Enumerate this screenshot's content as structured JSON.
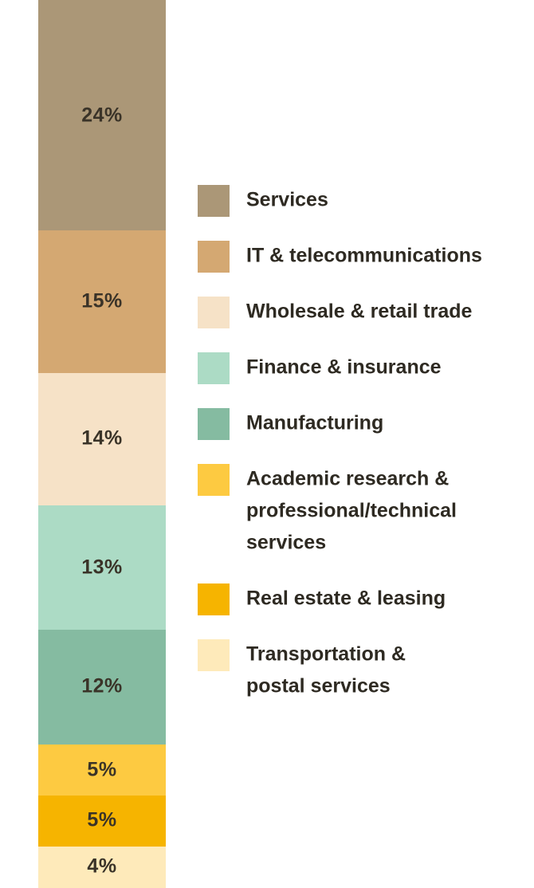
{
  "chart_data": {
    "type": "bar",
    "stacked": true,
    "orientation": "vertical",
    "series": [
      {
        "name": "Services",
        "value": 24,
        "label": "24%",
        "color": "#ab9777"
      },
      {
        "name": "IT & telecommunications",
        "value": 15,
        "label": "15%",
        "color": "#d4a872"
      },
      {
        "name": "Wholesale & retail trade",
        "value": 14,
        "label": "14%",
        "color": "#f6e2c7"
      },
      {
        "name": "Finance & insurance",
        "value": 13,
        "label": "13%",
        "color": "#acdbc5"
      },
      {
        "name": "Manufacturing",
        "value": 12,
        "label": "12%",
        "color": "#85bba1"
      },
      {
        "name": "Academic research & professional/technical services",
        "value": 5,
        "label": "5%",
        "color": "#fdca41"
      },
      {
        "name": "Real estate & leasing",
        "value": 5,
        "label": "5%",
        "color": "#f6b400"
      },
      {
        "name": "Transportation & postal services",
        "value": 4,
        "label": "4%",
        "color": "#feeaba"
      }
    ],
    "legend": {
      "position": "right",
      "entries": [
        {
          "lines": [
            "Services"
          ],
          "color": "#ab9777"
        },
        {
          "lines": [
            "IT & telecommunications"
          ],
          "color": "#d4a872"
        },
        {
          "lines": [
            "Wholesale & retail trade"
          ],
          "color": "#f6e2c7"
        },
        {
          "lines": [
            "Finance & insurance"
          ],
          "color": "#acdbc5"
        },
        {
          "lines": [
            "Manufacturing"
          ],
          "color": "#85bba1"
        },
        {
          "lines": [
            "Academic research &",
            "professional/technical",
            "services"
          ],
          "color": "#fdca41"
        },
        {
          "lines": [
            "Real estate & leasing"
          ],
          "color": "#f6b400"
        },
        {
          "lines": [
            "Transportation &",
            "postal services"
          ],
          "color": "#feeaba"
        }
      ]
    },
    "title": "",
    "xlabel": "",
    "ylabel": "",
    "grid": false
  }
}
